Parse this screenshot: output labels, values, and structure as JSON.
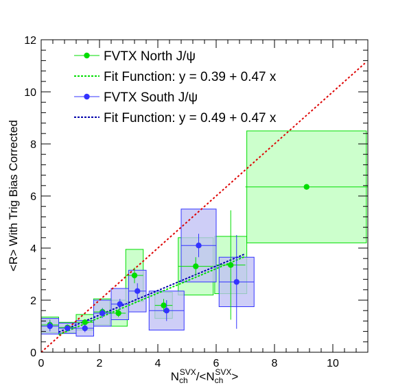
{
  "chart_data": {
    "type": "scatter",
    "xlabel": {
      "base": "N",
      "sub": "ch",
      "sup": "SVX",
      "mid": "/<N",
      "end": ">"
    },
    "ylabel": "<R> With Trig Bias Corrected",
    "xlim": [
      0,
      11.2
    ],
    "ylim": [
      0,
      12
    ],
    "x_ticks": [
      0,
      2,
      4,
      6,
      8,
      10
    ],
    "y_ticks": [
      0,
      2,
      4,
      6,
      8,
      10,
      12
    ],
    "x_minor_step": 0.4,
    "y_minor_step": 0.4,
    "grid": false,
    "legend_position": "top-left",
    "colors": {
      "north": "#00dd00",
      "north_fill": "#ccffcc",
      "south": "#3333ff",
      "south_fill": "#c0c0f5",
      "diagonal": "#dd0000",
      "fit_south": "#0000aa"
    },
    "legend": [
      {
        "label": "FVTX North J/ψ",
        "style": "marker",
        "color": "#00dd00"
      },
      {
        "label": "Fit Function: y = 0.39 + 0.47 x",
        "style": "dashed",
        "color": "#00dd00"
      },
      {
        "label": "FVTX South J/ψ",
        "style": "marker",
        "color": "#3333ff"
      },
      {
        "label": "Fit Function: y = 0.49 + 0.47 x",
        "style": "dashed",
        "color": "#0000aa"
      }
    ],
    "diagonal": {
      "x": [
        0,
        11.1
      ],
      "y": [
        0,
        11.1
      ]
    },
    "series": [
      {
        "name": "FVTX North J/ψ",
        "points": [
          {
            "x": 0.3,
            "y": 1.05,
            "xerr": 0.3,
            "yerr": 0.2,
            "sysx": 0.3,
            "sysy": 0.3
          },
          {
            "x": 0.9,
            "y": 0.95,
            "xerr": 0.3,
            "yerr": 0.12,
            "sysx": 0.3,
            "sysy": 0.2
          },
          {
            "x": 1.5,
            "y": 1.15,
            "xerr": 0.3,
            "yerr": 0.12,
            "sysx": 0.3,
            "sysy": 0.3
          },
          {
            "x": 2.1,
            "y": 1.55,
            "xerr": 0.3,
            "yerr": 0.15,
            "sysx": 0.3,
            "sysy": 0.5
          },
          {
            "x": 2.65,
            "y": 1.5,
            "xerr": 0.25,
            "yerr": 0.15,
            "sysx": 0.3,
            "sysy": 0.5
          },
          {
            "x": 3.2,
            "y": 2.95,
            "xerr": 0.3,
            "yerr": 0.3,
            "sysx": 0.3,
            "sysy": 1.0
          },
          {
            "x": 4.2,
            "y": 1.8,
            "xerr": 0.3,
            "yerr": 0.25,
            "sysx": 0.3,
            "sysy": 0.5
          },
          {
            "x": 5.3,
            "y": 3.3,
            "xerr": 0.6,
            "yerr": 0.35,
            "sysx": 0.6,
            "sysy": 1.1
          },
          {
            "x": 6.5,
            "y": 3.35,
            "xerr": 0.5,
            "yerr": 2.1,
            "sysx": 0.55,
            "sysy": 1.1
          },
          {
            "x": 9.1,
            "y": 6.35,
            "xerr": 2.1,
            "yerr": 0.0,
            "sysx": 2.05,
            "sysy": 2.15
          }
        ]
      },
      {
        "name": "FVTX South J/ψ",
        "points": [
          {
            "x": 0.3,
            "y": 1.0,
            "xerr": 0.3,
            "yerr": 0.2,
            "sysx": 0.3,
            "sysy": 0.3
          },
          {
            "x": 0.9,
            "y": 0.92,
            "xerr": 0.3,
            "yerr": 0.12,
            "sysx": 0.3,
            "sysy": 0.2
          },
          {
            "x": 1.5,
            "y": 0.92,
            "xerr": 0.3,
            "yerr": 0.15,
            "sysx": 0.3,
            "sysy": 0.3
          },
          {
            "x": 2.1,
            "y": 1.5,
            "xerr": 0.3,
            "yerr": 0.18,
            "sysx": 0.3,
            "sysy": 0.5
          },
          {
            "x": 2.7,
            "y": 1.85,
            "xerr": 0.3,
            "yerr": 0.2,
            "sysx": 0.3,
            "sysy": 0.6
          },
          {
            "x": 3.3,
            "y": 2.35,
            "xerr": 0.3,
            "yerr": 0.3,
            "sysx": 0.3,
            "sysy": 0.8
          },
          {
            "x": 4.3,
            "y": 1.6,
            "xerr": 0.6,
            "yerr": 0.4,
            "sysx": 0.6,
            "sysy": 0.75
          },
          {
            "x": 5.4,
            "y": 4.1,
            "xerr": 0.6,
            "yerr": 0.45,
            "sysx": 0.6,
            "sysy": 1.4
          },
          {
            "x": 6.7,
            "y": 2.7,
            "xerr": 0.6,
            "yerr": 1.8,
            "sysx": 0.6,
            "sysy": 0.95
          }
        ]
      }
    ],
    "fits": [
      {
        "name": "Fit Function: y = 0.39 + 0.47 x",
        "intercept": 0.39,
        "slope": 0.47,
        "x_range": [
          0.6,
          7.0
        ]
      },
      {
        "name": "Fit Function: y = 0.49 + 0.47 x",
        "intercept": 0.49,
        "slope": 0.47,
        "x_range": [
          0.6,
          7.0
        ]
      }
    ]
  }
}
